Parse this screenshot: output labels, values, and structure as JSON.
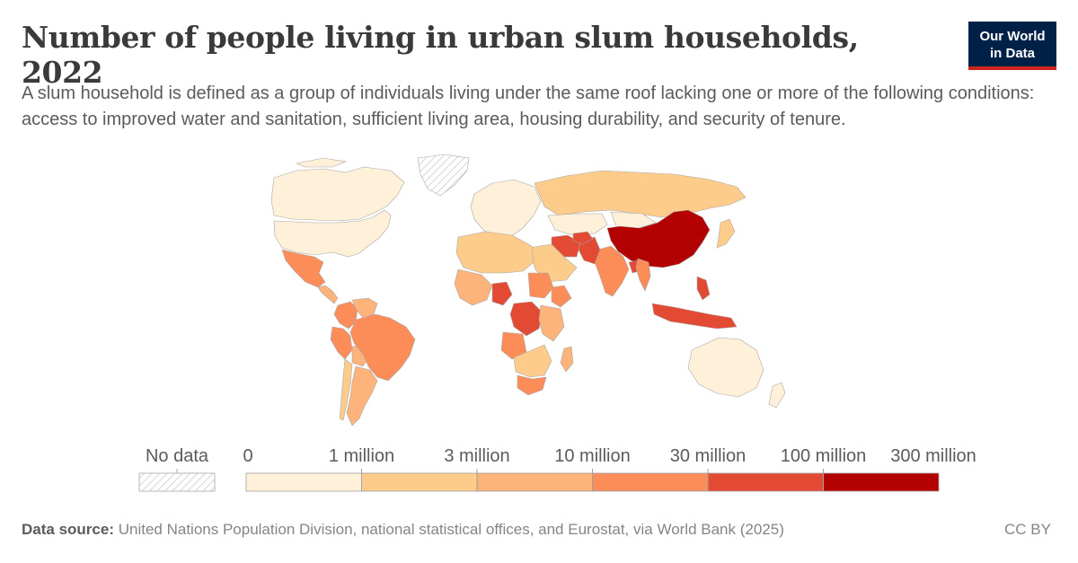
{
  "header": {
    "title": "Number of people living in urban slum households, 2022",
    "subtitle": "A slum household is defined as a group of individuals living under the same roof lacking one or more of the following conditions: access to improved water and sanitation, sufficient living area, housing durability, and security of tenure."
  },
  "logo": {
    "line1": "Our World",
    "line2": "in Data",
    "bg_color": "#002147",
    "accent_color": "#ce261e"
  },
  "legend": {
    "no_data_label": "No data",
    "no_data_pattern": "hatched-grey",
    "bins": [
      {
        "label": "0",
        "color": "#fef0d9"
      },
      {
        "label": "1 million",
        "color": "#fdcc8a"
      },
      {
        "label": "3 million",
        "color": "#fdb37a"
      },
      {
        "label": "10 million",
        "color": "#fc8d59"
      },
      {
        "label": "30 million",
        "color": "#e34a33"
      },
      {
        "label": "100 million",
        "color": "#b30000"
      },
      {
        "label": "300 million",
        "color": null
      }
    ]
  },
  "map_data": {
    "type": "choropleth",
    "year": "2022",
    "regions": [
      {
        "name": "Canada",
        "value_bin": 0
      },
      {
        "name": "United States",
        "value_bin": 0
      },
      {
        "name": "Greenland",
        "value_bin": "no-data"
      },
      {
        "name": "Mexico",
        "value_bin": 3
      },
      {
        "name": "Central America",
        "value_bin": 2
      },
      {
        "name": "Colombia",
        "value_bin": 3
      },
      {
        "name": "Venezuela",
        "value_bin": 2
      },
      {
        "name": "Peru",
        "value_bin": 3
      },
      {
        "name": "Bolivia",
        "value_bin": 2
      },
      {
        "name": "Brazil",
        "value_bin": 3
      },
      {
        "name": "Argentina",
        "value_bin": 2
      },
      {
        "name": "Chile",
        "value_bin": 1
      },
      {
        "name": "Europe",
        "value_bin": 0
      },
      {
        "name": "Russia",
        "value_bin": 1
      },
      {
        "name": "Kazakhstan",
        "value_bin": 0
      },
      {
        "name": "Mongolia",
        "value_bin": 0
      },
      {
        "name": "China",
        "value_bin": 5
      },
      {
        "name": "India",
        "value_bin": 3
      },
      {
        "name": "Pakistan",
        "value_bin": 4
      },
      {
        "name": "Iran",
        "value_bin": 4
      },
      {
        "name": "Afghanistan",
        "value_bin": 4
      },
      {
        "name": "Bangladesh",
        "value_bin": 4
      },
      {
        "name": "Myanmar",
        "value_bin": 3
      },
      {
        "name": "Philippines",
        "value_bin": 4
      },
      {
        "name": "Indonesia",
        "value_bin": 4
      },
      {
        "name": "Japan",
        "value_bin": 1
      },
      {
        "name": "Middle East",
        "value_bin": 1
      },
      {
        "name": "North Africa",
        "value_bin": 1
      },
      {
        "name": "West Africa",
        "value_bin": 2
      },
      {
        "name": "Nigeria",
        "value_bin": 4
      },
      {
        "name": "DR Congo",
        "value_bin": 4
      },
      {
        "name": "Sudan",
        "value_bin": 3
      },
      {
        "name": "Ethiopia",
        "value_bin": 3
      },
      {
        "name": "East Africa",
        "value_bin": 2
      },
      {
        "name": "Angola",
        "value_bin": 3
      },
      {
        "name": "Southern Africa",
        "value_bin": 1
      },
      {
        "name": "South Africa",
        "value_bin": 3
      },
      {
        "name": "Madagascar",
        "value_bin": 2
      },
      {
        "name": "Australia",
        "value_bin": 0
      },
      {
        "name": "New Zealand",
        "value_bin": 0
      }
    ]
  },
  "footer": {
    "source_label": "Data source:",
    "source_text": "United Nations Population Division, national statistical offices, and Eurostat, via World Bank (2025)",
    "license": "CC BY"
  }
}
